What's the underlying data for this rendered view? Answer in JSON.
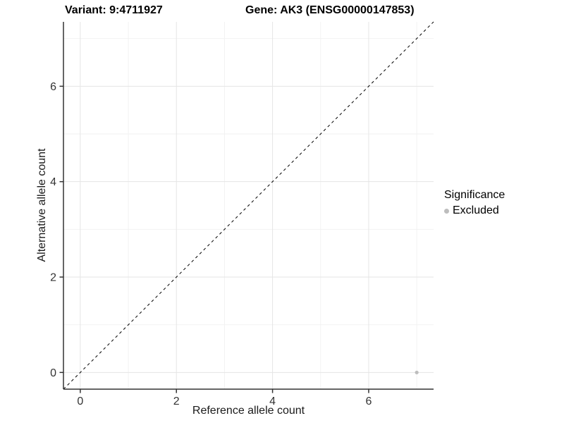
{
  "chart_data": {
    "type": "scatter",
    "title_left": "Variant: 9:4711927",
    "title_right": "Gene: AK3 (ENSG00000147853)",
    "xlabel": "Reference allele count",
    "ylabel": "Alternative allele count",
    "xlim": [
      -0.35,
      7.35
    ],
    "ylim": [
      -0.35,
      7.35
    ],
    "xticks": [
      0,
      2,
      4,
      6
    ],
    "yticks": [
      0,
      2,
      4,
      6
    ],
    "xminor": [
      1,
      3,
      5,
      7
    ],
    "yminor": [
      1,
      3,
      5,
      7
    ],
    "grid": true,
    "identity_line": {
      "style": "dashed",
      "from": [
        -0.35,
        -0.35
      ],
      "to": [
        7.35,
        7.35
      ],
      "color": "#000000"
    },
    "series": [
      {
        "name": "Excluded",
        "color": "#bdbdbd",
        "points": [
          [
            7,
            0
          ]
        ]
      }
    ],
    "legend": {
      "title": "Significance",
      "position": "right",
      "items": [
        {
          "label": "Excluded",
          "color": "#bdbdbd"
        }
      ]
    },
    "colors": {
      "grid_major": "#e5e5e5",
      "grid_minor": "#f2f2f2",
      "axis_line": "#333333",
      "tick_label": "#333333"
    }
  }
}
